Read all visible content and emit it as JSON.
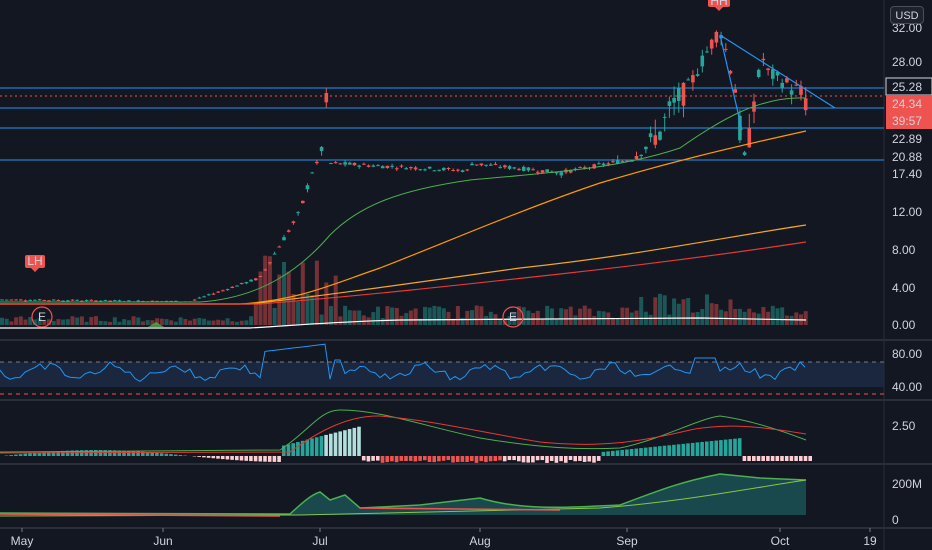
{
  "currency_button": "USD",
  "colors": {
    "background": "#131722",
    "up": "#26a69a",
    "down": "#ef5350",
    "hline": "#2196f3",
    "sma_green": "#4caf50",
    "sma_orange": "#ff9800",
    "sma_gold": "#f5a623",
    "sma_red": "#e53935",
    "rsi_line": "#2196f3",
    "macd_line": "#4caf50",
    "signal_line": "#e53935"
  },
  "price_axis": {
    "ticks": [
      "32.00",
      "28.00",
      "12.00",
      "8.00",
      "4.00",
      "0.00"
    ],
    "labels": [
      {
        "text": "25.28",
        "color": "#131722",
        "bg": "#131722",
        "fg": "#d1d4dc",
        "outline": true
      },
      {
        "text": "24.34",
        "bg": "#ef5350",
        "fg": "#ffffff"
      },
      {
        "text": "39:57",
        "bg": "#ef5350",
        "fg": "#ffffff"
      },
      {
        "text": "22.89",
        "bg": "#131722",
        "fg": "#d1d4dc"
      },
      {
        "text": "20.88",
        "bg": "#131722",
        "fg": "#d1d4dc"
      },
      {
        "text": "17.40",
        "bg": "#131722",
        "fg": "#d1d4dc"
      }
    ]
  },
  "rsi_axis": {
    "ticks": [
      "80.00",
      "40.00"
    ]
  },
  "macd_axis": {
    "ticks": [
      "2.50"
    ]
  },
  "obv_axis": {
    "ticks": [
      "200M",
      "0"
    ]
  },
  "time_axis": [
    "May",
    "Jun",
    "Jul",
    "Aug",
    "Sep",
    "Oct",
    "19"
  ],
  "markers": {
    "lh_label": "LH",
    "hh_label": "HH",
    "earnings_label": "E"
  }
}
